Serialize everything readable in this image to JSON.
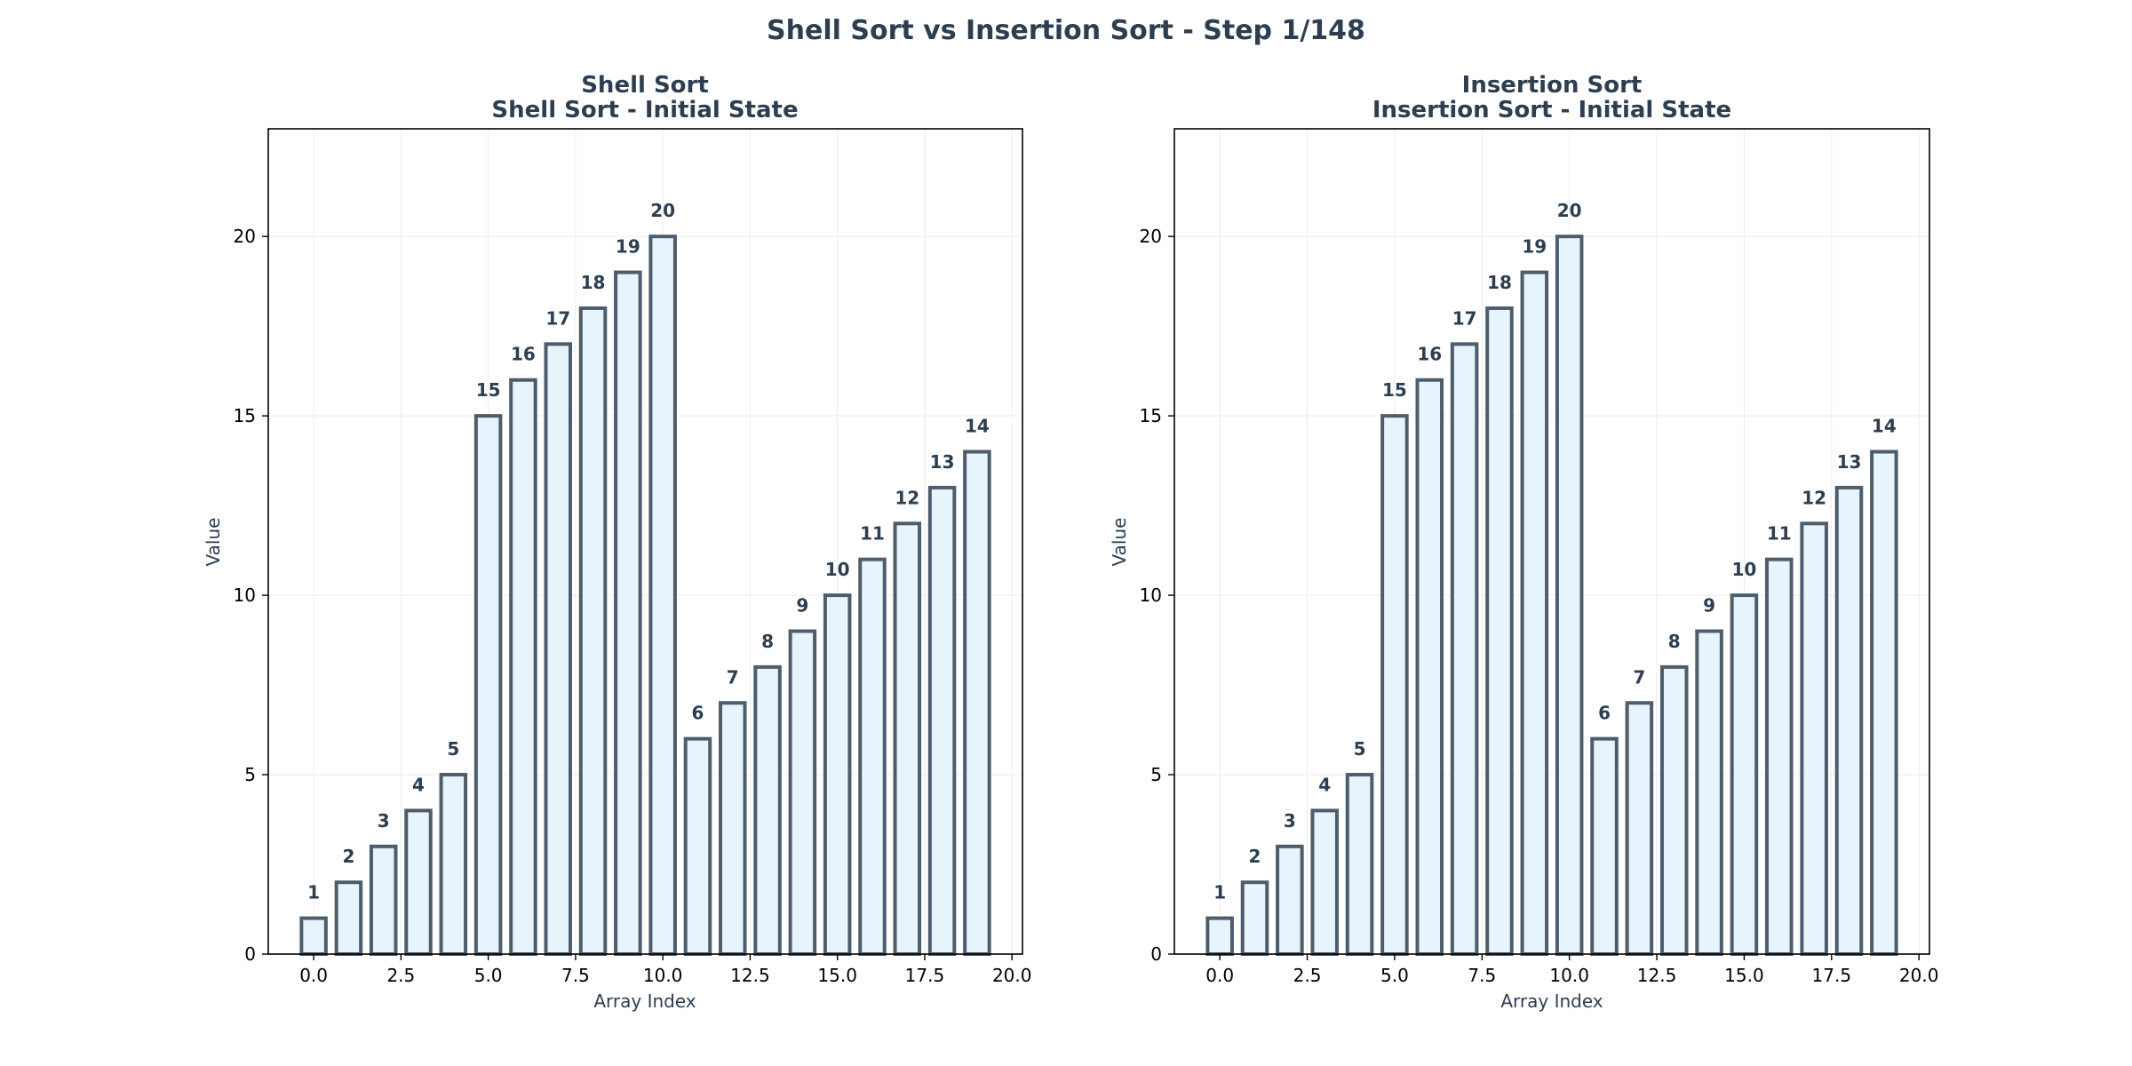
{
  "figure": {
    "suptitle": "Shell Sort vs Insertion Sort - Step 1/148"
  },
  "colors": {
    "bar_fill": "#e8f4fc",
    "bar_edge": "#4d5d6c",
    "title": "#2c3e50",
    "grid": "#ececec",
    "axis": "#000000"
  },
  "chart_data": [
    {
      "type": "bar",
      "title": "Shell Sort",
      "subtitle": "Shell Sort - Initial State",
      "xlabel": "Array Index",
      "ylabel": "Value",
      "xlim": [
        -1.3,
        20.3
      ],
      "ylim": [
        0,
        23
      ],
      "xticks": [
        "0.0",
        "2.5",
        "5.0",
        "7.5",
        "10.0",
        "12.5",
        "15.0",
        "17.5",
        "20.0"
      ],
      "xtick_values": [
        0,
        2.5,
        5,
        7.5,
        10,
        12.5,
        15,
        17.5,
        20
      ],
      "yticks": [
        "0",
        "5",
        "10",
        "15",
        "20"
      ],
      "ytick_values": [
        0,
        5,
        10,
        15,
        20
      ],
      "grid": true,
      "x": [
        0,
        1,
        2,
        3,
        4,
        5,
        6,
        7,
        8,
        9,
        10,
        11,
        12,
        13,
        14,
        15,
        16,
        17,
        18,
        19
      ],
      "values": [
        1,
        2,
        3,
        4,
        5,
        15,
        16,
        17,
        18,
        19,
        20,
        6,
        7,
        8,
        9,
        10,
        11,
        12,
        13,
        14
      ]
    },
    {
      "type": "bar",
      "title": "Insertion Sort",
      "subtitle": "Insertion Sort - Initial State",
      "xlabel": "Array Index",
      "ylabel": "Value",
      "xlim": [
        -1.3,
        20.3
      ],
      "ylim": [
        0,
        23
      ],
      "xticks": [
        "0.0",
        "2.5",
        "5.0",
        "7.5",
        "10.0",
        "12.5",
        "15.0",
        "17.5",
        "20.0"
      ],
      "xtick_values": [
        0,
        2.5,
        5,
        7.5,
        10,
        12.5,
        15,
        17.5,
        20
      ],
      "yticks": [
        "0",
        "5",
        "10",
        "15",
        "20"
      ],
      "ytick_values": [
        0,
        5,
        10,
        15,
        20
      ],
      "grid": true,
      "x": [
        0,
        1,
        2,
        3,
        4,
        5,
        6,
        7,
        8,
        9,
        10,
        11,
        12,
        13,
        14,
        15,
        16,
        17,
        18,
        19
      ],
      "values": [
        1,
        2,
        3,
        4,
        5,
        15,
        16,
        17,
        18,
        19,
        20,
        6,
        7,
        8,
        9,
        10,
        11,
        12,
        13,
        14
      ]
    }
  ]
}
